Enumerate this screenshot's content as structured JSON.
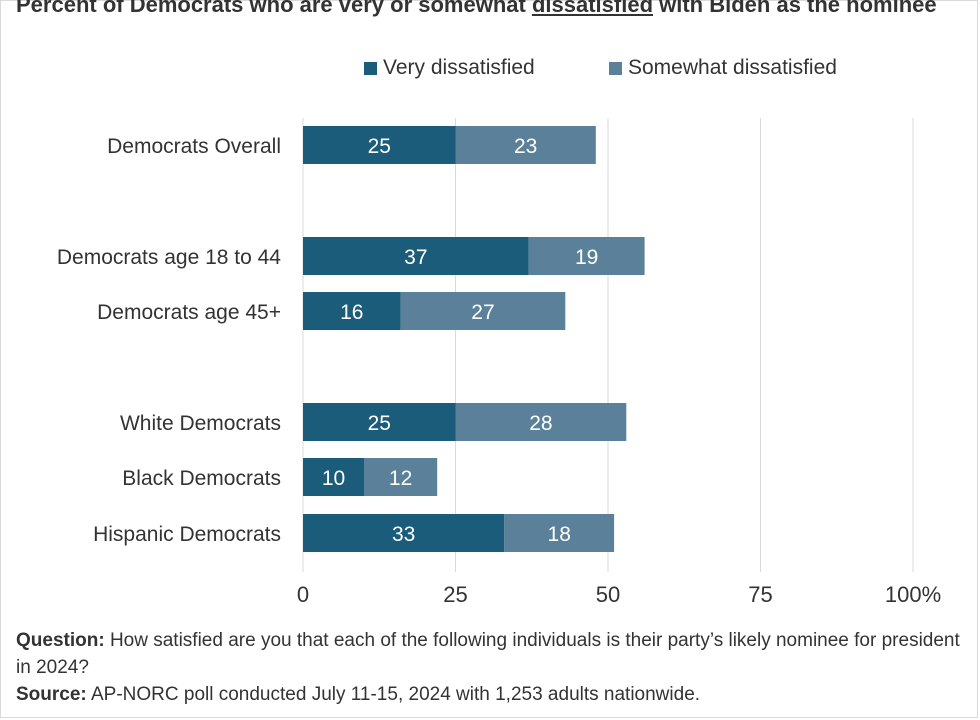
{
  "title": {
    "prefix": "Percent of Democrats who are very or somewhat ",
    "underlined": "dissatisfied",
    "suffix": " with Biden as the nominee"
  },
  "colors": {
    "very": "#1b5c7a",
    "somewhat": "#5b8099",
    "grid": "#d9d9d9",
    "text": "#333333",
    "bar_label": "#ffffff"
  },
  "chart_data": {
    "type": "bar",
    "orientation": "horizontal",
    "stacked": true,
    "categories": [
      "Democrats Overall",
      "Democrats age 18 to 44",
      "Democrats age 45+",
      "White Democrats",
      "Black Democrats",
      "Hispanic Democrats"
    ],
    "groups": [
      [
        0
      ],
      [
        1,
        2
      ],
      [
        3,
        4,
        5
      ]
    ],
    "series": [
      {
        "name": "Very dissatisfied",
        "values": [
          25,
          37,
          16,
          25,
          10,
          33
        ]
      },
      {
        "name": "Somewhat dissatisfied",
        "values": [
          23,
          19,
          27,
          28,
          12,
          18
        ]
      }
    ],
    "xlim": [
      0,
      100
    ],
    "xticks": [
      0,
      25,
      50,
      75,
      100
    ],
    "xtick_labels": [
      "0",
      "25",
      "50",
      "75",
      "100%"
    ],
    "grid": true,
    "legend_position": "top"
  },
  "footer": {
    "question_label": "Question:",
    "question_text": " How satisfied are you that each of the following individuals is their party’s likely nominee for president in 2024?",
    "source_label": "Source:",
    "source_text": " AP-NORC poll conducted July 11-15, 2024 with 1,253 adults nationwide."
  }
}
